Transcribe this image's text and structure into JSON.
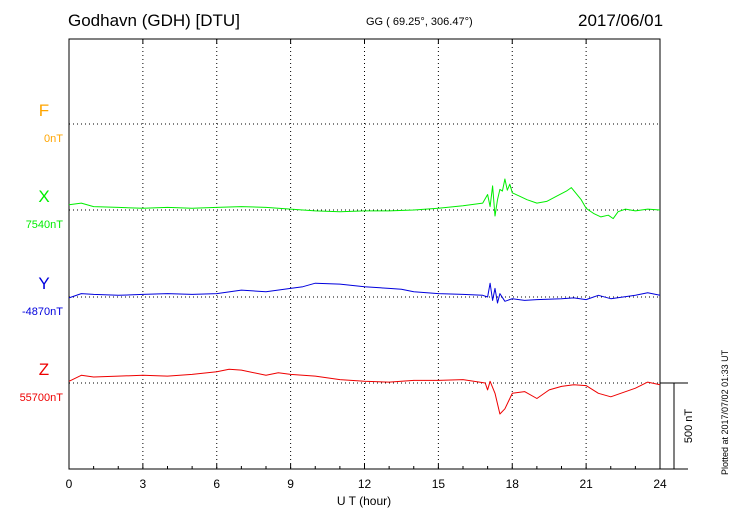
{
  "header": {
    "station": "Godhavn (GDH)  [DTU]",
    "coords": "GG ( 69.25°, 306.47°)",
    "date": "2017/06/01"
  },
  "footer_note": "Plotted at 2017/07/02 01:33 UT",
  "chart_data": {
    "type": "line",
    "xlabel": "U T (hour)",
    "xlim": [
      0,
      24
    ],
    "xticks": [
      "0",
      "3",
      "6",
      "9",
      "12",
      "15",
      "18",
      "21",
      "24"
    ],
    "scale_bar_label": "500 nT",
    "scale_bar_nT": 500,
    "grid": true,
    "channels": [
      {
        "letter": "F",
        "baseline": "0nT",
        "color": "#ffa500",
        "points": []
      },
      {
        "letter": "X",
        "baseline": "7540nT",
        "color": "#00ee00",
        "points": [
          [
            0.0,
            30
          ],
          [
            0.5,
            40
          ],
          [
            1.0,
            20
          ],
          [
            2.0,
            15
          ],
          [
            3.0,
            10
          ],
          [
            4.0,
            15
          ],
          [
            5.0,
            10
          ],
          [
            6.0,
            15
          ],
          [
            7.0,
            20
          ],
          [
            8.0,
            15
          ],
          [
            8.5,
            10
          ],
          [
            9.0,
            5
          ],
          [
            10.0,
            -5
          ],
          [
            11.0,
            -10
          ],
          [
            12.0,
            -5
          ],
          [
            13.0,
            -5
          ],
          [
            14.0,
            0
          ],
          [
            15.0,
            10
          ],
          [
            16.0,
            25
          ],
          [
            16.8,
            40
          ],
          [
            17.0,
            90
          ],
          [
            17.1,
            20
          ],
          [
            17.2,
            140
          ],
          [
            17.3,
            -35
          ],
          [
            17.4,
            60
          ],
          [
            17.5,
            120
          ],
          [
            17.6,
            110
          ],
          [
            17.7,
            180
          ],
          [
            17.8,
            115
          ],
          [
            17.9,
            150
          ],
          [
            18.0,
            100
          ],
          [
            18.3,
            80
          ],
          [
            18.6,
            60
          ],
          [
            19.0,
            40
          ],
          [
            19.4,
            50
          ],
          [
            19.8,
            80
          ],
          [
            20.2,
            110
          ],
          [
            20.4,
            130
          ],
          [
            20.6,
            95
          ],
          [
            20.8,
            60
          ],
          [
            21.0,
            10
          ],
          [
            21.3,
            -20
          ],
          [
            21.6,
            -40
          ],
          [
            21.9,
            -30
          ],
          [
            22.1,
            -50
          ],
          [
            22.3,
            -10
          ],
          [
            22.6,
            5
          ],
          [
            23.0,
            -5
          ],
          [
            23.5,
            5
          ],
          [
            24.0,
            0
          ]
        ]
      },
      {
        "letter": "Y",
        "baseline": "-4870nT",
        "color": "#0000dd",
        "points": [
          [
            0.0,
            -5
          ],
          [
            0.5,
            20
          ],
          [
            1.0,
            15
          ],
          [
            2.0,
            10
          ],
          [
            3.0,
            15
          ],
          [
            4.0,
            20
          ],
          [
            5.0,
            15
          ],
          [
            6.0,
            20
          ],
          [
            7.0,
            40
          ],
          [
            8.0,
            30
          ],
          [
            9.0,
            50
          ],
          [
            9.5,
            60
          ],
          [
            10.0,
            80
          ],
          [
            11.0,
            75
          ],
          [
            12.0,
            60
          ],
          [
            13.0,
            50
          ],
          [
            13.5,
            45
          ],
          [
            14.0,
            30
          ],
          [
            15.0,
            20
          ],
          [
            16.0,
            15
          ],
          [
            16.8,
            10
          ],
          [
            17.0,
            0
          ],
          [
            17.1,
            80
          ],
          [
            17.2,
            -20
          ],
          [
            17.3,
            50
          ],
          [
            17.4,
            -35
          ],
          [
            17.5,
            20
          ],
          [
            17.7,
            -25
          ],
          [
            18.0,
            -10
          ],
          [
            18.5,
            -20
          ],
          [
            19.0,
            -15
          ],
          [
            20.0,
            -10
          ],
          [
            20.5,
            -5
          ],
          [
            21.0,
            -15
          ],
          [
            21.5,
            10
          ],
          [
            22.0,
            -10
          ],
          [
            23.0,
            10
          ],
          [
            23.5,
            25
          ],
          [
            24.0,
            10
          ]
        ]
      },
      {
        "letter": "Z",
        "baseline": "55700nT",
        "color": "#ee0000",
        "points": [
          [
            0.0,
            10
          ],
          [
            0.5,
            45
          ],
          [
            1.0,
            35
          ],
          [
            2.0,
            40
          ],
          [
            3.0,
            45
          ],
          [
            4.0,
            40
          ],
          [
            5.0,
            50
          ],
          [
            6.0,
            65
          ],
          [
            6.5,
            80
          ],
          [
            7.0,
            75
          ],
          [
            8.0,
            45
          ],
          [
            8.5,
            60
          ],
          [
            9.0,
            50
          ],
          [
            10.0,
            40
          ],
          [
            11.0,
            20
          ],
          [
            12.0,
            10
          ],
          [
            13.0,
            5
          ],
          [
            14.0,
            15
          ],
          [
            15.0,
            15
          ],
          [
            16.0,
            20
          ],
          [
            16.9,
            0
          ],
          [
            17.0,
            -40
          ],
          [
            17.1,
            10
          ],
          [
            17.3,
            -60
          ],
          [
            17.5,
            -180
          ],
          [
            17.7,
            -150
          ],
          [
            18.0,
            -60
          ],
          [
            18.5,
            -50
          ],
          [
            19.0,
            -90
          ],
          [
            19.5,
            -40
          ],
          [
            20.0,
            -20
          ],
          [
            20.5,
            -10
          ],
          [
            21.0,
            -15
          ],
          [
            21.5,
            -60
          ],
          [
            22.0,
            -80
          ],
          [
            23.0,
            -30
          ],
          [
            23.5,
            5
          ],
          [
            24.0,
            -10
          ]
        ]
      }
    ]
  }
}
